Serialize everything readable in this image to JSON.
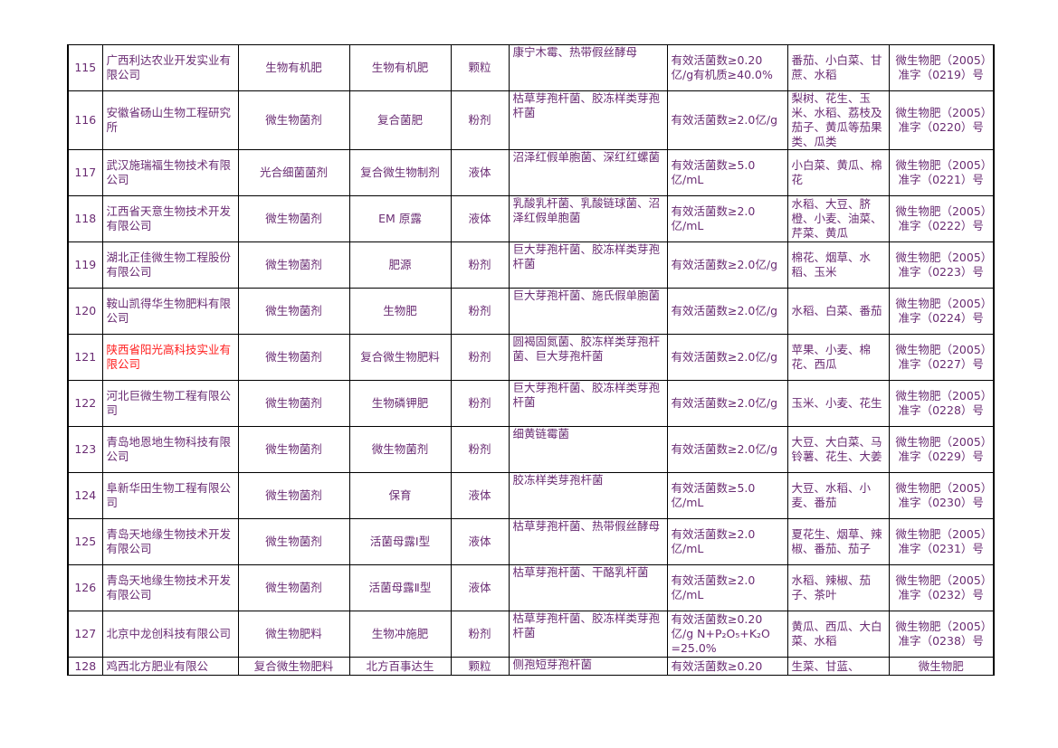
{
  "rows": [
    {
      "no": "115",
      "company": "广西利达农业开发实业有限公司",
      "type": "生物有机肥",
      "name": "生物有机肥",
      "form": "颗粒",
      "strain": "康宁木霉、热带假丝酵母",
      "spec": "有效活菌数≥0.20亿/g有机质≥40.0%",
      "crops": "番茄、小白菜、甘蔗、水稻",
      "reg": "微生物肥（2005）准字（0219）号"
    },
    {
      "no": "116",
      "company": "安徽省砀山生物工程研究所",
      "type": "微生物菌剂",
      "name": "复合菌肥",
      "form": "粉剂",
      "strain": "枯草芽孢杆菌、胶冻样类芽孢杆菌",
      "spec": "有效活菌数≥2.0亿/g",
      "crops": "梨树、花生、玉米、水稻、荔枝及茄子、黄瓜等茄果类、瓜类",
      "reg": "微生物肥（2005）准字（0220）号"
    },
    {
      "no": "117",
      "company": "武汉施瑞福生物技术有限公司",
      "type": "光合细菌菌剂",
      "name": "复合微生物制剂",
      "form": "液体",
      "strain": "沼泽红假单胞菌、深红红螺菌",
      "spec": "有效活菌数≥5.0亿/mL",
      "crops": "小白菜、黄瓜、棉花",
      "reg": "微生物肥（2005）准字（0221）号"
    },
    {
      "no": "118",
      "company": "江西省天意生物技术开发有限公司",
      "type": "微生物菌剂",
      "name": "EM 原露",
      "form": "液体",
      "strain": "乳酸乳杆菌、乳酸链球菌、沼泽红假单胞菌",
      "spec": "有效活菌数≥2.0亿/mL",
      "crops": "水稻、大豆、脐橙、小麦、油菜、芹菜、黄瓜",
      "reg": "微生物肥（2005）准字（0222）号"
    },
    {
      "no": "119",
      "company": "湖北正佳微生物工程股份有限公司",
      "type": "微生物菌剂",
      "name": "肥源",
      "form": "粉剂",
      "strain": "巨大芽孢杆菌、胶冻样类芽孢杆菌",
      "spec": "有效活菌数≥2.0亿/g",
      "crops": "棉花、烟草、水稻、玉米",
      "reg": "微生物肥（2005）准字（0223）号"
    },
    {
      "no": "120",
      "company": "鞍山凯得华生物肥料有限公司",
      "type": "微生物菌剂",
      "name": "生物肥",
      "form": "粉剂",
      "strain": "巨大芽孢杆菌、施氏假单胞菌",
      "spec": "有效活菌数≥2.0亿/g",
      "crops": "水稻、白菜、番茄",
      "reg": "微生物肥（2005）准字（0224）号"
    },
    {
      "no": "121",
      "company": "陕西省阳光高科技实业有限公司",
      "type": "微生物菌剂",
      "name": "复合微生物肥料",
      "form": "粉剂",
      "strain": "圆褐固氮菌、胶冻样类芽孢杆菌、巨大芽孢杆菌",
      "spec": "有效活菌数≥2.0亿/g",
      "crops": "苹果、小麦、棉花、西瓜",
      "reg": "微生物肥（2005）准字（0227）号",
      "red": true
    },
    {
      "no": "122",
      "company": "河北巨微生物工程有限公司",
      "type": "微生物菌剂",
      "name": "生物磷钾肥",
      "form": "粉剂",
      "strain": "巨大芽孢杆菌、胶冻样类芽孢杆菌",
      "spec": "有效活菌数≥2.0亿/g",
      "crops": "玉米、小麦、花生",
      "reg": "微生物肥（2005）准字（0228）号"
    },
    {
      "no": "123",
      "company": "青岛地恩地生物科技有限公司",
      "type": "微生物菌剂",
      "name": "微生物菌剂",
      "form": "粉剂",
      "strain": "细黄链霉菌",
      "spec": "有效活菌数≥2.0亿/g",
      "crops": "大豆、大白菜、马铃薯、花生、大姜",
      "reg": "微生物肥（2005）准字（0229）号"
    },
    {
      "no": "124",
      "company": "阜新华田生物工程有限公司",
      "type": "微生物菌剂",
      "name": "保育",
      "form": "液体",
      "strain": "胶冻样类芽孢杆菌",
      "spec": "有效活菌数≥5.0亿/mL",
      "crops": "大豆、水稻、小麦、番茄",
      "reg": "微生物肥（2005）准字（0230）号"
    },
    {
      "no": "125",
      "company": "青岛天地缘生物技术开发有限公司",
      "type": "微生物菌剂",
      "name": "活菌母露Ⅰ型",
      "form": "液体",
      "strain": "枯草芽孢杆菌、热带假丝酵母",
      "spec": "有效活菌数≥2.0亿/mL",
      "crops": "夏花生、烟草、辣椒、番茄、茄子",
      "reg": "微生物肥（2005）准字（0231）号"
    },
    {
      "no": "126",
      "company": "青岛天地缘生物技术开发有限公司",
      "type": "微生物菌剂",
      "name": "活菌母露Ⅱ型",
      "form": "液体",
      "strain": "枯草芽孢杆菌、干酪乳杆菌",
      "spec": "有效活菌数≥2.0亿/mL",
      "crops": "水稻、辣椒、茄子、茶叶",
      "reg": "微生物肥（2005）准字（0232）号"
    },
    {
      "no": "127",
      "company": "北京中龙创科技有限公司",
      "type": "微生物肥料",
      "name": "生物冲施肥",
      "form": "粉剂",
      "strain": "枯草芽孢杆菌、胶冻样类芽孢杆菌",
      "spec": "有效活菌数≥0.20亿/g N+P₂O₅+K₂O =25.0%",
      "crops": "黄瓜、西瓜、大白菜、水稻",
      "reg": "微生物肥（2005）准字（0238）号"
    },
    {
      "no": "128",
      "company": "鸡西北方肥业有限公",
      "type": "复合微生物肥料",
      "name": "北方百事达生",
      "form": "颗粒",
      "strain": "侧孢短芽孢杆菌",
      "spec": "有效活菌数≥0.20",
      "crops": "生菜、甘蓝、",
      "reg": "微生物肥"
    }
  ]
}
